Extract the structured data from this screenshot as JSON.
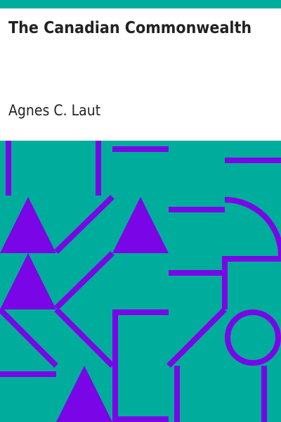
{
  "cover": {
    "title": "The Canadian Commonwealth",
    "author": "Agnes C. Laut"
  },
  "colors": {
    "top_bar": "#00ad9c",
    "background": "#00ad9c",
    "shapes": "#7a05e6",
    "text": "#222222"
  }
}
